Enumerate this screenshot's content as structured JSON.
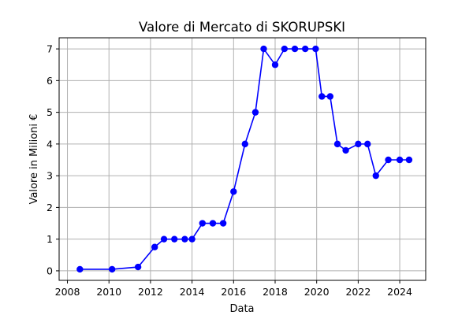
{
  "chart_data": {
    "type": "line",
    "title": "Valore di Mercato di SKORUPSKI",
    "xlabel": "Data",
    "ylabel": "Valore in Milioni €",
    "xlim": [
      2007.6,
      2025.25
    ],
    "ylim": [
      -0.3,
      7.35
    ],
    "grid": true,
    "x_ticks": [
      2008,
      2010,
      2012,
      2014,
      2016,
      2018,
      2020,
      2022,
      2024
    ],
    "y_ticks": [
      0,
      1,
      2,
      3,
      4,
      5,
      6,
      7
    ],
    "series": [
      {
        "color": "#0000ff",
        "marker": "circle",
        "points": [
          {
            "x": 2008.6,
            "y": 0.05
          },
          {
            "x": 2010.15,
            "y": 0.05
          },
          {
            "x": 2011.4,
            "y": 0.12
          },
          {
            "x": 2012.2,
            "y": 0.75
          },
          {
            "x": 2012.65,
            "y": 1.0
          },
          {
            "x": 2013.15,
            "y": 1.0
          },
          {
            "x": 2013.65,
            "y": 1.0
          },
          {
            "x": 2014.0,
            "y": 1.0
          },
          {
            "x": 2014.5,
            "y": 1.5
          },
          {
            "x": 2015.0,
            "y": 1.5
          },
          {
            "x": 2015.5,
            "y": 1.5
          },
          {
            "x": 2016.0,
            "y": 2.5
          },
          {
            "x": 2016.55,
            "y": 4.0
          },
          {
            "x": 2017.05,
            "y": 5.0
          },
          {
            "x": 2017.45,
            "y": 7.0
          },
          {
            "x": 2018.0,
            "y": 6.5
          },
          {
            "x": 2018.45,
            "y": 7.0
          },
          {
            "x": 2018.95,
            "y": 7.0
          },
          {
            "x": 2019.45,
            "y": 7.0
          },
          {
            "x": 2019.95,
            "y": 7.0
          },
          {
            "x": 2020.25,
            "y": 5.5
          },
          {
            "x": 2020.65,
            "y": 5.5
          },
          {
            "x": 2021.0,
            "y": 4.0
          },
          {
            "x": 2021.4,
            "y": 3.8
          },
          {
            "x": 2022.0,
            "y": 4.0
          },
          {
            "x": 2022.45,
            "y": 4.0
          },
          {
            "x": 2022.85,
            "y": 3.0
          },
          {
            "x": 2023.45,
            "y": 3.5
          },
          {
            "x": 2024.0,
            "y": 3.5
          },
          {
            "x": 2024.45,
            "y": 3.5
          }
        ]
      }
    ]
  }
}
